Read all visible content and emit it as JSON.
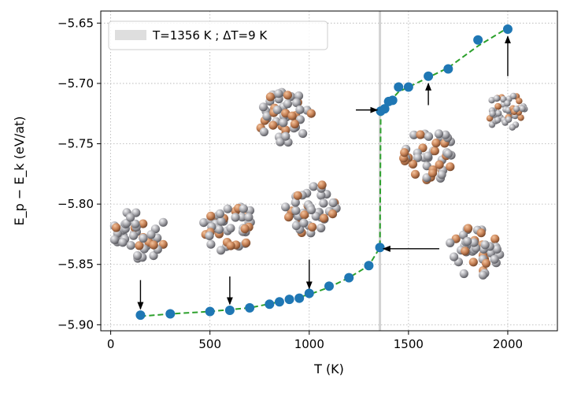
{
  "chart_data": {
    "type": "scatter",
    "xlabel": "T (K)",
    "ylabel": "E_p − E_k (eV/at)",
    "xlim": [
      -50,
      2250
    ],
    "ylim": [
      -5.905,
      -5.64
    ],
    "xticks": [
      0,
      500,
      1000,
      1500,
      2000
    ],
    "yticks": [
      -5.9,
      -5.85,
      -5.8,
      -5.75,
      -5.7,
      -5.65
    ],
    "xtick_labels": [
      "0",
      "500",
      "1000",
      "1500",
      "2000"
    ],
    "ytick_labels": [
      "−5.90",
      "−5.85",
      "−5.80",
      "−5.75",
      "−5.70",
      "−5.65"
    ],
    "grid": true,
    "legend_position": "top-left",
    "series": [
      {
        "type": "scatter",
        "color": "#1f77b4",
        "points": [
          [
            150,
            -5.892
          ],
          [
            300,
            -5.891
          ],
          [
            500,
            -5.889
          ],
          [
            600,
            -5.888
          ],
          [
            700,
            -5.886
          ],
          [
            800,
            -5.883
          ],
          [
            850,
            -5.881
          ],
          [
            900,
            -5.879
          ],
          [
            950,
            -5.878
          ],
          [
            1000,
            -5.874
          ],
          [
            1100,
            -5.868
          ],
          [
            1200,
            -5.861
          ],
          [
            1300,
            -5.851
          ],
          [
            1356,
            -5.836
          ],
          [
            1360,
            -5.723
          ],
          [
            1380,
            -5.721
          ],
          [
            1400,
            -5.715
          ],
          [
            1420,
            -5.714
          ],
          [
            1450,
            -5.703
          ],
          [
            1500,
            -5.703
          ],
          [
            1600,
            -5.694
          ],
          [
            1700,
            -5.688
          ],
          [
            1850,
            -5.664
          ],
          [
            2000,
            -5.655
          ]
        ]
      },
      {
        "type": "line",
        "style": "dashed",
        "color": "#2ca02c",
        "points": [
          [
            150,
            -5.893
          ],
          [
            300,
            -5.891
          ],
          [
            500,
            -5.889
          ],
          [
            700,
            -5.886
          ],
          [
            850,
            -5.881
          ],
          [
            1000,
            -5.875
          ],
          [
            1100,
            -5.869
          ],
          [
            1200,
            -5.861
          ],
          [
            1300,
            -5.851
          ],
          [
            1356,
            -5.836
          ],
          [
            1360,
            -5.723
          ],
          [
            1400,
            -5.716
          ],
          [
            1450,
            -5.707
          ],
          [
            1500,
            -5.703
          ],
          [
            1600,
            -5.695
          ],
          [
            1700,
            -5.687
          ],
          [
            1850,
            -5.669
          ],
          [
            2000,
            -5.654
          ]
        ]
      }
    ],
    "vline": {
      "x": 1356,
      "color": "#d3d3d3",
      "legend_label": "T=1356 K ; ΔT=9 K"
    },
    "annotations": [
      {
        "name": "arrow-150",
        "from": [
          150,
          -5.863
        ],
        "to": [
          150,
          -5.887
        ]
      },
      {
        "name": "arrow-600",
        "from": [
          600,
          -5.86
        ],
        "to": [
          600,
          -5.883
        ]
      },
      {
        "name": "arrow-1000",
        "from": [
          1000,
          -5.846
        ],
        "to": [
          1000,
          -5.87
        ]
      },
      {
        "name": "arrow-1355",
        "from": [
          1235,
          -5.722
        ],
        "to": [
          1343,
          -5.722
        ]
      },
      {
        "name": "arrow-1600",
        "from": [
          1600,
          -5.718
        ],
        "to": [
          1600,
          -5.7
        ]
      },
      {
        "name": "arrow-2000",
        "from": [
          2000,
          -5.694
        ],
        "to": [
          2000,
          -5.661
        ]
      },
      {
        "name": "arrow-1370",
        "from": [
          1655,
          -5.837
        ],
        "to": [
          1373,
          -5.837
        ]
      }
    ],
    "cluster_images": [
      {
        "name": "cluster-150",
        "center": [
          150,
          -5.824
        ],
        "r": 5.6,
        "dark": 0.22
      },
      {
        "name": "cluster-600",
        "center": [
          600,
          -5.819
        ],
        "r": 5.6,
        "dark": 0.22
      },
      {
        "name": "cluster-1000",
        "center": [
          1000,
          -5.803
        ],
        "r": 5.6,
        "dark": 0.22
      },
      {
        "name": "cluster-900",
        "center": [
          875,
          -5.728
        ],
        "r": 5.6,
        "dark": 0.3
      },
      {
        "name": "cluster-1600",
        "center": [
          1610,
          -5.759
        ],
        "r": 5.6,
        "dark": 0.35
      },
      {
        "name": "cluster-1850",
        "center": [
          1835,
          -5.839
        ],
        "r": 5.6,
        "dark": 0.28
      },
      {
        "name": "cluster-2000",
        "center": [
          1985,
          -5.722
        ],
        "r": 4.2,
        "dark": 0.28
      }
    ]
  }
}
